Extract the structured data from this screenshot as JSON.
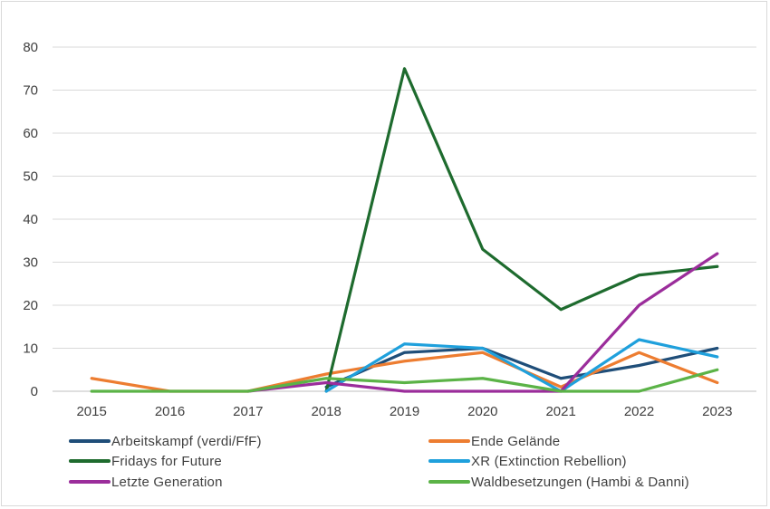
{
  "chart_data": {
    "type": "line",
    "title": "",
    "xlabel": "",
    "ylabel": "",
    "x": [
      "2015",
      "2016",
      "2017",
      "2018",
      "2019",
      "2020",
      "2021",
      "2022",
      "2023"
    ],
    "ylim": [
      0,
      80
    ],
    "yticks": [
      0,
      10,
      20,
      30,
      40,
      50,
      60,
      70,
      80
    ],
    "grid": true,
    "legend_position": "bottom",
    "series": [
      {
        "name": "Arbeitskampf (verdi/FfF)",
        "color": "#1f4e79",
        "values": [
          null,
          null,
          null,
          1,
          9,
          10,
          3,
          6,
          10
        ]
      },
      {
        "name": "Ende Gelände",
        "color": "#ed7d31",
        "values": [
          3,
          0,
          0,
          4,
          7,
          9,
          1,
          9,
          2
        ]
      },
      {
        "name": "Fridays for Future",
        "color": "#1e6b2e",
        "values": [
          null,
          null,
          null,
          0,
          75,
          33,
          19,
          27,
          29
        ]
      },
      {
        "name": "XR (Extinction Rebellion)",
        "color": "#1fa0dc",
        "values": [
          null,
          null,
          null,
          0,
          11,
          10,
          0,
          12,
          8
        ]
      },
      {
        "name": "Letzte Generation",
        "color": "#9b2d9b",
        "values": [
          null,
          null,
          0,
          2,
          0,
          0,
          0,
          20,
          32
        ]
      },
      {
        "name": "Waldbesetzungen (Hambi & Danni)",
        "color": "#5bb347",
        "values": [
          0,
          0,
          0,
          3,
          2,
          3,
          0,
          0,
          5
        ]
      }
    ]
  }
}
